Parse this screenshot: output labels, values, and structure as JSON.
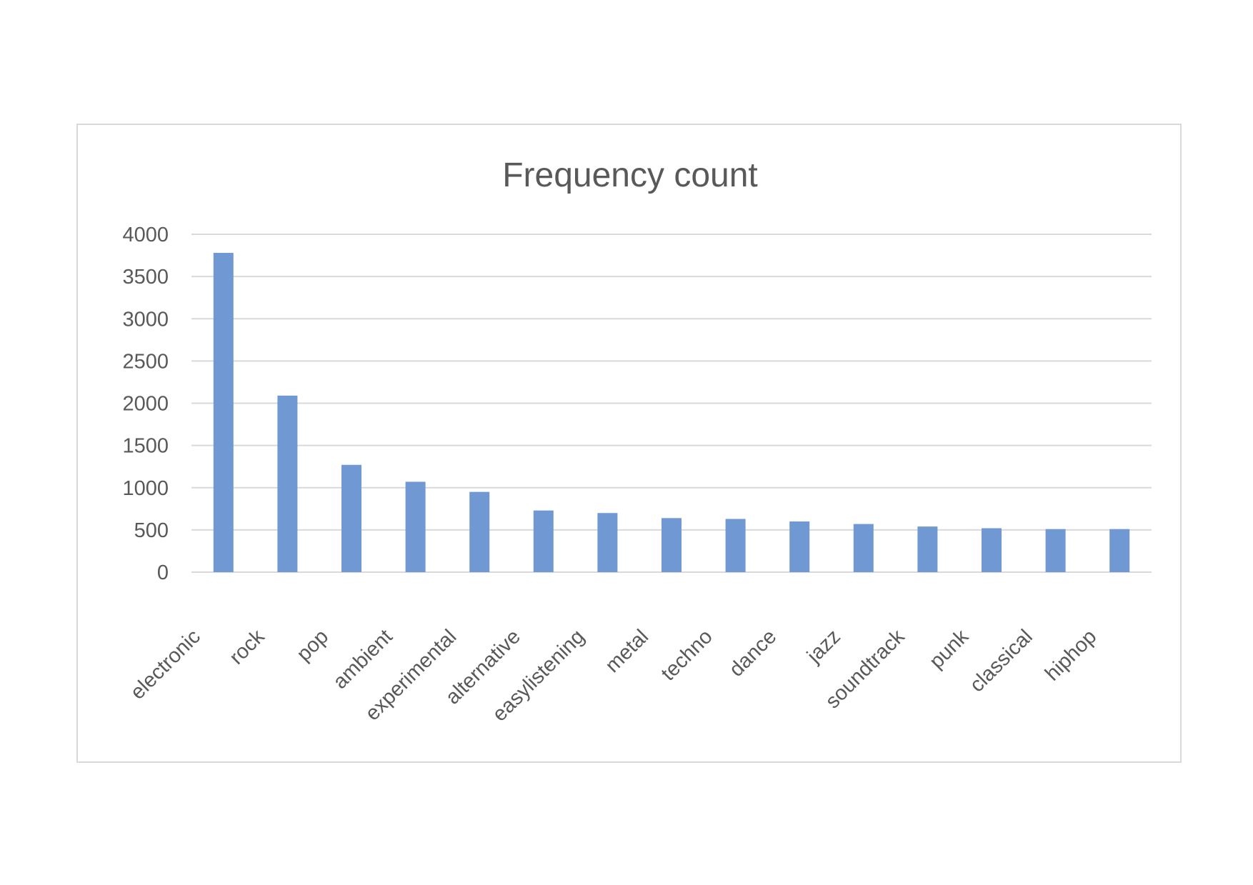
{
  "chart_data": {
    "type": "bar",
    "title": "Frequency count",
    "xlabel": "",
    "ylabel": "",
    "categories": [
      "electronic",
      "rock",
      "pop",
      "ambient",
      "experimental",
      "alternative",
      "easylistening",
      "metal",
      "techno",
      "dance",
      "jazz",
      "soundtrack",
      "punk",
      "classical",
      "hiphop"
    ],
    "values": [
      3780,
      2090,
      1270,
      1070,
      950,
      730,
      700,
      640,
      630,
      600,
      570,
      540,
      520,
      510,
      510
    ],
    "ylim": [
      0,
      4000
    ],
    "yticks": [
      "0",
      "500",
      "1000",
      "1500",
      "2000",
      "2500",
      "3000",
      "3500",
      "4000"
    ],
    "grid": true,
    "legend": "none",
    "colors": {
      "bar": "#7099d3",
      "grid": "#d9d9d9",
      "text": "#595959",
      "frame": "#d9d9d9"
    }
  }
}
